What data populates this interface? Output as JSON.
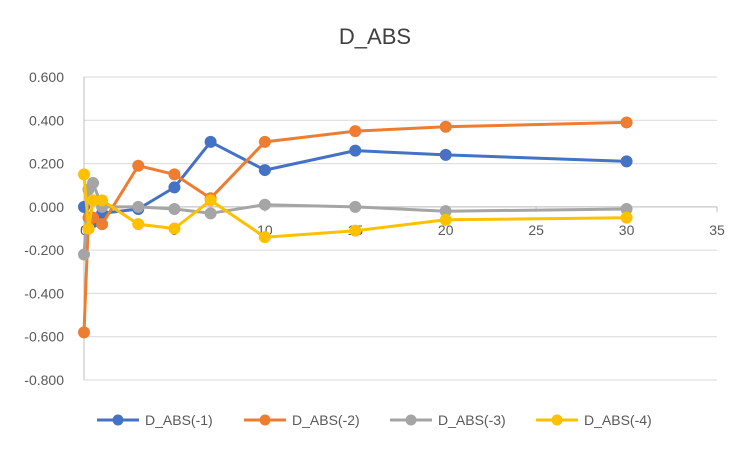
{
  "chart_data": {
    "type": "scatter",
    "title": "D_ABS",
    "xlabel": "",
    "ylabel": "",
    "xlim": [
      0,
      35
    ],
    "ylim": [
      -0.8,
      0.6
    ],
    "x_ticks": [
      0,
      5,
      10,
      15,
      20,
      25,
      30,
      35
    ],
    "y_ticks": [
      0.6,
      0.4,
      0.2,
      0.0,
      -0.2,
      -0.4,
      -0.6,
      -0.8
    ],
    "x_tick_labels": [
      "0",
      "5",
      "10",
      "15",
      "20",
      "25",
      "30",
      "35"
    ],
    "y_tick_labels": [
      "0.600",
      "0.400",
      "0.200",
      "0.000",
      "-0.200",
      "-0.400",
      "-0.600",
      "-0.800"
    ],
    "grid": "horizontal",
    "legend_position": "bottom",
    "series": [
      {
        "name": "D_ABS(-1)",
        "color": "#4472C4",
        "x": [
          0,
          0.25,
          0.5,
          1,
          3,
          5,
          7,
          10,
          15,
          20,
          30
        ],
        "y": [
          0.0,
          -0.1,
          -0.07,
          -0.03,
          -0.01,
          0.09,
          0.3,
          0.17,
          0.26,
          0.24,
          0.21
        ]
      },
      {
        "name": "D_ABS(-2)",
        "color": "#ED7D31",
        "x": [
          0,
          0.25,
          0.5,
          1,
          3,
          5,
          7,
          10,
          15,
          20,
          30
        ],
        "y": [
          -0.58,
          -0.05,
          -0.05,
          -0.08,
          0.19,
          0.15,
          0.04,
          0.3,
          0.35,
          0.37,
          0.39
        ]
      },
      {
        "name": "D_ABS(-3)",
        "color": "#A5A5A5",
        "x": [
          0,
          0.25,
          0.5,
          1,
          3,
          5,
          7,
          10,
          15,
          20,
          30
        ],
        "y": [
          -0.22,
          0.08,
          0.11,
          0.0,
          0.0,
          -0.01,
          -0.03,
          0.01,
          0.0,
          -0.02,
          -0.01
        ]
      },
      {
        "name": "D_ABS(-4)",
        "color": "#FFC000",
        "x": [
          0,
          0.25,
          0.5,
          1,
          3,
          5,
          7,
          10,
          15,
          20,
          30
        ],
        "y": [
          0.15,
          -0.1,
          0.03,
          0.03,
          -0.08,
          -0.1,
          0.03,
          -0.14,
          -0.11,
          -0.06,
          -0.05
        ]
      }
    ]
  }
}
